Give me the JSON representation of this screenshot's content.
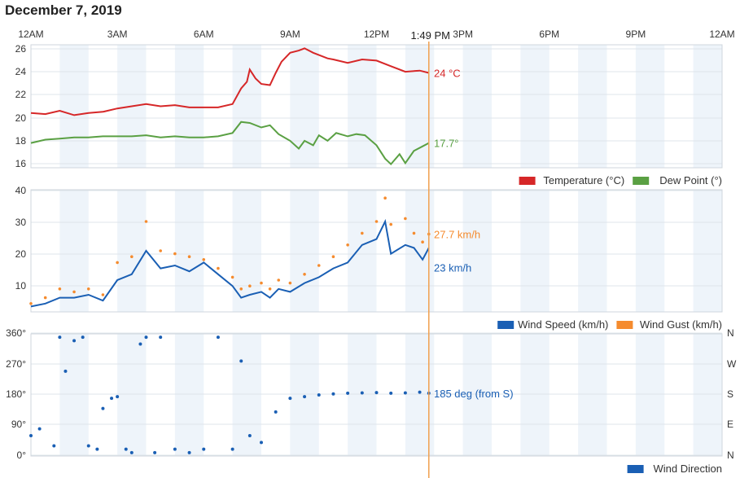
{
  "page": {
    "date": "December 7, 2019"
  },
  "time_axis": {
    "ticks": [
      {
        "h": 0,
        "label": "12AM"
      },
      {
        "h": 3,
        "label": "3AM"
      },
      {
        "h": 6,
        "label": "6AM"
      },
      {
        "h": 9,
        "label": "9AM"
      },
      {
        "h": 12,
        "label": "12PM"
      },
      {
        "h": 15,
        "label": "3PM"
      },
      {
        "h": 18,
        "label": "6PM"
      },
      {
        "h": 21,
        "label": "9PM"
      },
      {
        "h": 24,
        "label": "12AM"
      }
    ],
    "now_label": "1:49 PM",
    "now_hour": 13.8167
  },
  "colors": {
    "temperature": "#d62728",
    "dew_point": "#5aa043",
    "wind_speed": "#1a5fb4",
    "wind_gust": "#f58b2e",
    "wind_direction": "#1a5fb4",
    "now_line": "#f0a050",
    "band": "#eef4fa"
  },
  "chart_data": [
    {
      "type": "line",
      "name": "temperature-dewpoint",
      "ylim": [
        15.7,
        26.3
      ],
      "yticks": [
        "16",
        "18",
        "20",
        "22",
        "24",
        "26"
      ],
      "series": [
        {
          "name": "Temperature (°C)",
          "current_label": "24 °C",
          "points": [
            [
              0,
              20.4
            ],
            [
              0.5,
              20.3
            ],
            [
              1,
              20.6
            ],
            [
              1.5,
              20.2
            ],
            [
              2,
              20.4
            ],
            [
              2.5,
              20.5
            ],
            [
              3,
              20.8
            ],
            [
              3.5,
              21.0
            ],
            [
              4,
              21.2
            ],
            [
              4.5,
              21.0
            ],
            [
              5,
              21.1
            ],
            [
              5.5,
              20.9
            ],
            [
              6,
              20.9
            ],
            [
              6.5,
              20.9
            ],
            [
              7,
              21.2
            ],
            [
              7.3,
              22.6
            ],
            [
              7.5,
              23.2
            ],
            [
              7.6,
              24.3
            ],
            [
              7.8,
              23.5
            ],
            [
              8,
              23.0
            ],
            [
              8.3,
              22.9
            ],
            [
              8.5,
              24.0
            ],
            [
              8.7,
              25.0
            ],
            [
              9,
              25.8
            ],
            [
              9.3,
              26.0
            ],
            [
              9.5,
              26.2
            ],
            [
              9.8,
              25.8
            ],
            [
              10,
              25.6
            ],
            [
              10.3,
              25.3
            ],
            [
              10.5,
              25.2
            ],
            [
              11,
              24.9
            ],
            [
              11.5,
              25.2
            ],
            [
              12,
              25.1
            ],
            [
              12.5,
              24.6
            ],
            [
              13,
              24.1
            ],
            [
              13.5,
              24.2
            ],
            [
              13.8167,
              24.0
            ]
          ]
        },
        {
          "name": "Dew Point (°)",
          "current_label": "17.7°",
          "points": [
            [
              0,
              17.7
            ],
            [
              0.5,
              18.0
            ],
            [
              1,
              18.1
            ],
            [
              1.5,
              18.2
            ],
            [
              2,
              18.2
            ],
            [
              2.5,
              18.3
            ],
            [
              3,
              18.3
            ],
            [
              3.5,
              18.3
            ],
            [
              4,
              18.4
            ],
            [
              4.5,
              18.2
            ],
            [
              5,
              18.3
            ],
            [
              5.5,
              18.2
            ],
            [
              6,
              18.2
            ],
            [
              6.5,
              18.3
            ],
            [
              7,
              18.6
            ],
            [
              7.3,
              19.6
            ],
            [
              7.6,
              19.5
            ],
            [
              8,
              19.1
            ],
            [
              8.3,
              19.3
            ],
            [
              8.6,
              18.5
            ],
            [
              9,
              17.9
            ],
            [
              9.3,
              17.2
            ],
            [
              9.5,
              17.9
            ],
            [
              9.8,
              17.5
            ],
            [
              10,
              18.4
            ],
            [
              10.3,
              17.9
            ],
            [
              10.6,
              18.6
            ],
            [
              11,
              18.3
            ],
            [
              11.3,
              18.5
            ],
            [
              11.6,
              18.4
            ],
            [
              12,
              17.5
            ],
            [
              12.3,
              16.3
            ],
            [
              12.5,
              15.8
            ],
            [
              12.8,
              16.7
            ],
            [
              13,
              15.9
            ],
            [
              13.3,
              17.0
            ],
            [
              13.6,
              17.4
            ],
            [
              13.8167,
              17.7
            ]
          ]
        }
      ],
      "legend": [
        "Temperature (°C)",
        "Dew Point (°)"
      ]
    },
    {
      "type": "line",
      "name": "wind-speed-gust",
      "ylim": [
        2,
        42
      ],
      "yticks": [
        "10",
        "20",
        "30",
        "40"
      ],
      "series": [
        {
          "name": "Wind Speed (km/h)",
          "current_label": "23 km/h",
          "points": [
            [
              0,
              3
            ],
            [
              0.5,
              4
            ],
            [
              1,
              6
            ],
            [
              1.5,
              6
            ],
            [
              2,
              7
            ],
            [
              2.5,
              5
            ],
            [
              3,
              12
            ],
            [
              3.5,
              14
            ],
            [
              4,
              22
            ],
            [
              4.5,
              16
            ],
            [
              5,
              17
            ],
            [
              5.5,
              15
            ],
            [
              6,
              18
            ],
            [
              6.5,
              14
            ],
            [
              7,
              10
            ],
            [
              7.3,
              6
            ],
            [
              7.6,
              7
            ],
            [
              8,
              8
            ],
            [
              8.3,
              6
            ],
            [
              8.6,
              9
            ],
            [
              9,
              8
            ],
            [
              9.5,
              11
            ],
            [
              10,
              13
            ],
            [
              10.5,
              16
            ],
            [
              11,
              18
            ],
            [
              11.5,
              24
            ],
            [
              12,
              26
            ],
            [
              12.3,
              32
            ],
            [
              12.5,
              21
            ],
            [
              13,
              24
            ],
            [
              13.3,
              23
            ],
            [
              13.6,
              19
            ],
            [
              13.8167,
              23
            ]
          ]
        },
        {
          "name": "Wind Gust (km/h)",
          "current_label": "27.7 km/h",
          "points": [
            [
              0,
              4
            ],
            [
              0.5,
              6
            ],
            [
              1,
              9
            ],
            [
              1.5,
              8
            ],
            [
              2,
              9
            ],
            [
              2.5,
              7
            ],
            [
              3,
              18
            ],
            [
              3.5,
              20
            ],
            [
              4,
              32
            ],
            [
              4.5,
              22
            ],
            [
              5,
              21
            ],
            [
              5.5,
              20
            ],
            [
              6,
              19
            ],
            [
              6.5,
              16
            ],
            [
              7,
              13
            ],
            [
              7.3,
              9
            ],
            [
              7.6,
              10
            ],
            [
              8,
              11
            ],
            [
              8.3,
              9
            ],
            [
              8.6,
              12
            ],
            [
              9,
              11
            ],
            [
              9.5,
              14
            ],
            [
              10,
              17
            ],
            [
              10.5,
              20
            ],
            [
              11,
              24
            ],
            [
              11.5,
              28
            ],
            [
              12,
              32
            ],
            [
              12.3,
              40
            ],
            [
              12.5,
              31
            ],
            [
              13,
              33
            ],
            [
              13.3,
              28
            ],
            [
              13.6,
              25
            ],
            [
              13.8167,
              27.7
            ]
          ]
        }
      ],
      "legend": [
        "Wind Speed (km/h)",
        "Wind Gust (km/h)"
      ]
    },
    {
      "type": "scatter",
      "name": "wind-direction",
      "ylim": [
        0,
        360
      ],
      "yticks": [
        "0°",
        "90°",
        "180°",
        "270°",
        "360°"
      ],
      "right_labels": [
        "N",
        "E",
        "S",
        "W",
        "N"
      ],
      "series": [
        {
          "name": "Wind Direction",
          "current_label": "185 deg (from S)",
          "points": [
            [
              0,
              60
            ],
            [
              0.3,
              80
            ],
            [
              0.8,
              30
            ],
            [
              1,
              350
            ],
            [
              1.2,
              250
            ],
            [
              1.5,
              340
            ],
            [
              1.8,
              350
            ],
            [
              2,
              30
            ],
            [
              2.3,
              20
            ],
            [
              2.5,
              140
            ],
            [
              2.8,
              170
            ],
            [
              3,
              175
            ],
            [
              3.3,
              20
            ],
            [
              3.5,
              10
            ],
            [
              3.8,
              330
            ],
            [
              4,
              350
            ],
            [
              4.3,
              10
            ],
            [
              4.5,
              350
            ],
            [
              5,
              20
            ],
            [
              5.5,
              10
            ],
            [
              6,
              20
            ],
            [
              6.5,
              350
            ],
            [
              7,
              20
            ],
            [
              7.3,
              280
            ],
            [
              7.6,
              60
            ],
            [
              8,
              40
            ],
            [
              8.5,
              130
            ],
            [
              9,
              170
            ],
            [
              9.5,
              175
            ],
            [
              10,
              180
            ],
            [
              10.5,
              183
            ],
            [
              11,
              185
            ],
            [
              11.5,
              186
            ],
            [
              12,
              187
            ],
            [
              12.5,
              185
            ],
            [
              13,
              186
            ],
            [
              13.5,
              188
            ],
            [
              13.8167,
              185
            ]
          ]
        }
      ],
      "legend": [
        "Wind Direction"
      ]
    }
  ]
}
